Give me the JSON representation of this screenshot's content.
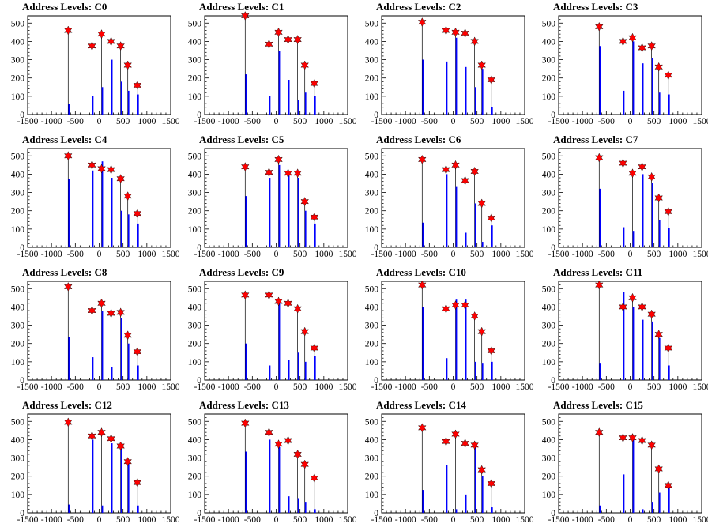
{
  "chart_data": {
    "type": "bar",
    "layout": {
      "rows": 4,
      "cols": 4
    },
    "xlim": [
      -1500,
      1500
    ],
    "ylim": [
      0,
      540
    ],
    "x_ticks": [
      -1500,
      -1000,
      -500,
      0,
      500,
      1000,
      1500
    ],
    "y_ticks": [
      0,
      100,
      200,
      300,
      400,
      500
    ],
    "bar_color": "#0000ff",
    "marker_color": "#ff0000",
    "marker_shape": "star",
    "line_positions": [
      -650,
      -150,
      50,
      250,
      450,
      600,
      800
    ],
    "panels": [
      {
        "title": "Address Levels: C0",
        "peaks": [
          {
            "x": -650,
            "y": 460
          },
          {
            "x": -150,
            "y": 375
          },
          {
            "x": 50,
            "y": 440
          },
          {
            "x": 250,
            "y": 400
          },
          {
            "x": 450,
            "y": 375
          },
          {
            "x": 600,
            "y": 270
          },
          {
            "x": 800,
            "y": 160
          }
        ],
        "bars": [
          {
            "x": -650,
            "y": 60
          },
          {
            "x": -150,
            "y": 100
          },
          {
            "x": 50,
            "y": 150
          },
          {
            "x": 250,
            "y": 300
          },
          {
            "x": 450,
            "y": 180
          },
          {
            "x": 600,
            "y": 130
          },
          {
            "x": 800,
            "y": 110
          }
        ]
      },
      {
        "title": "Address Levels: C1",
        "peaks": [
          {
            "x": -650,
            "y": 540
          },
          {
            "x": -150,
            "y": 385
          },
          {
            "x": 50,
            "y": 450
          },
          {
            "x": 250,
            "y": 410
          },
          {
            "x": 450,
            "y": 410
          },
          {
            "x": 600,
            "y": 270
          },
          {
            "x": 800,
            "y": 170
          }
        ],
        "bars": [
          {
            "x": -650,
            "y": 220
          },
          {
            "x": -150,
            "y": 100
          },
          {
            "x": 50,
            "y": 350
          },
          {
            "x": 250,
            "y": 190
          },
          {
            "x": 450,
            "y": 80
          },
          {
            "x": 600,
            "y": 120
          },
          {
            "x": 800,
            "y": 100
          }
        ]
      },
      {
        "title": "Address Levels: C2",
        "peaks": [
          {
            "x": -650,
            "y": 505
          },
          {
            "x": -150,
            "y": 460
          },
          {
            "x": 50,
            "y": 450
          },
          {
            "x": 250,
            "y": 445
          },
          {
            "x": 450,
            "y": 400
          },
          {
            "x": 600,
            "y": 270
          },
          {
            "x": 800,
            "y": 190
          }
        ],
        "bars": [
          {
            "x": -650,
            "y": 300
          },
          {
            "x": -150,
            "y": 290
          },
          {
            "x": 50,
            "y": 420
          },
          {
            "x": 250,
            "y": 260
          },
          {
            "x": 450,
            "y": 150
          },
          {
            "x": 600,
            "y": 250
          },
          {
            "x": 800,
            "y": 40
          }
        ]
      },
      {
        "title": "Address Levels: C3",
        "peaks": [
          {
            "x": -650,
            "y": 480
          },
          {
            "x": -150,
            "y": 400
          },
          {
            "x": 50,
            "y": 420
          },
          {
            "x": 250,
            "y": 365
          },
          {
            "x": 450,
            "y": 375
          },
          {
            "x": 600,
            "y": 260
          },
          {
            "x": 800,
            "y": 215
          }
        ],
        "bars": [
          {
            "x": -650,
            "y": 375
          },
          {
            "x": -150,
            "y": 130
          },
          {
            "x": 50,
            "y": 400
          },
          {
            "x": 250,
            "y": 280
          },
          {
            "x": 450,
            "y": 310
          },
          {
            "x": 600,
            "y": 120
          },
          {
            "x": 800,
            "y": 110
          }
        ]
      },
      {
        "title": "Address Levels: C4",
        "peaks": [
          {
            "x": -650,
            "y": 500
          },
          {
            "x": -150,
            "y": 450
          },
          {
            "x": 50,
            "y": 430
          },
          {
            "x": 250,
            "y": 425
          },
          {
            "x": 450,
            "y": 375
          },
          {
            "x": 600,
            "y": 280
          },
          {
            "x": 800,
            "y": 185
          }
        ],
        "bars": [
          {
            "x": -650,
            "y": 375
          },
          {
            "x": -150,
            "y": 420
          },
          {
            "x": 50,
            "y": 470
          },
          {
            "x": 250,
            "y": 380
          },
          {
            "x": 450,
            "y": 200
          },
          {
            "x": 600,
            "y": 180
          },
          {
            "x": 800,
            "y": 130
          }
        ]
      },
      {
        "title": "Address Levels: C5",
        "peaks": [
          {
            "x": -650,
            "y": 440
          },
          {
            "x": -150,
            "y": 410
          },
          {
            "x": 50,
            "y": 480
          },
          {
            "x": 250,
            "y": 405
          },
          {
            "x": 450,
            "y": 405
          },
          {
            "x": 600,
            "y": 250
          },
          {
            "x": 800,
            "y": 165
          }
        ],
        "bars": [
          {
            "x": -650,
            "y": 280
          },
          {
            "x": -150,
            "y": 380
          },
          {
            "x": 50,
            "y": 450
          },
          {
            "x": 250,
            "y": 400
          },
          {
            "x": 450,
            "y": 380
          },
          {
            "x": 600,
            "y": 200
          },
          {
            "x": 800,
            "y": 130
          }
        ]
      },
      {
        "title": "Address Levels: C6",
        "peaks": [
          {
            "x": -650,
            "y": 480
          },
          {
            "x": -150,
            "y": 425
          },
          {
            "x": 50,
            "y": 450
          },
          {
            "x": 250,
            "y": 365
          },
          {
            "x": 450,
            "y": 415
          },
          {
            "x": 600,
            "y": 240
          },
          {
            "x": 800,
            "y": 160
          }
        ],
        "bars": [
          {
            "x": -650,
            "y": 135
          },
          {
            "x": -150,
            "y": 400
          },
          {
            "x": 50,
            "y": 330
          },
          {
            "x": 250,
            "y": 80
          },
          {
            "x": 450,
            "y": 240
          },
          {
            "x": 600,
            "y": 30
          },
          {
            "x": 800,
            "y": 120
          }
        ]
      },
      {
        "title": "Address Levels: C7",
        "peaks": [
          {
            "x": -650,
            "y": 490
          },
          {
            "x": -150,
            "y": 460
          },
          {
            "x": 50,
            "y": 405
          },
          {
            "x": 250,
            "y": 440
          },
          {
            "x": 450,
            "y": 385
          },
          {
            "x": 600,
            "y": 270
          },
          {
            "x": 800,
            "y": 195
          }
        ],
        "bars": [
          {
            "x": -650,
            "y": 320
          },
          {
            "x": -150,
            "y": 110
          },
          {
            "x": 50,
            "y": 90
          },
          {
            "x": 250,
            "y": 400
          },
          {
            "x": 450,
            "y": 350
          },
          {
            "x": 600,
            "y": 150
          },
          {
            "x": 800,
            "y": 105
          }
        ]
      },
      {
        "title": "Address Levels: C8",
        "peaks": [
          {
            "x": -650,
            "y": 510
          },
          {
            "x": -150,
            "y": 380
          },
          {
            "x": 50,
            "y": 420
          },
          {
            "x": 250,
            "y": 365
          },
          {
            "x": 450,
            "y": 370
          },
          {
            "x": 600,
            "y": 245
          },
          {
            "x": 800,
            "y": 155
          }
        ],
        "bars": [
          {
            "x": -650,
            "y": 235
          },
          {
            "x": -150,
            "y": 125
          },
          {
            "x": 50,
            "y": 380
          },
          {
            "x": 250,
            "y": 70
          },
          {
            "x": 450,
            "y": 340
          },
          {
            "x": 600,
            "y": 200
          },
          {
            "x": 800,
            "y": 80
          }
        ]
      },
      {
        "title": "Address Levels: C9",
        "peaks": [
          {
            "x": -650,
            "y": 465
          },
          {
            "x": -150,
            "y": 465
          },
          {
            "x": 50,
            "y": 430
          },
          {
            "x": 250,
            "y": 420
          },
          {
            "x": 450,
            "y": 390
          },
          {
            "x": 600,
            "y": 265
          },
          {
            "x": 800,
            "y": 175
          }
        ],
        "bars": [
          {
            "x": -650,
            "y": 200
          },
          {
            "x": -150,
            "y": 80
          },
          {
            "x": 50,
            "y": 420
          },
          {
            "x": 250,
            "y": 110
          },
          {
            "x": 450,
            "y": 150
          },
          {
            "x": 600,
            "y": 100
          },
          {
            "x": 800,
            "y": 130
          }
        ]
      },
      {
        "title": "Address Levels: C10",
        "peaks": [
          {
            "x": -650,
            "y": 520
          },
          {
            "x": -150,
            "y": 390
          },
          {
            "x": 50,
            "y": 410
          },
          {
            "x": 250,
            "y": 410
          },
          {
            "x": 450,
            "y": 350
          },
          {
            "x": 600,
            "y": 265
          },
          {
            "x": 800,
            "y": 160
          }
        ],
        "bars": [
          {
            "x": -650,
            "y": 400
          },
          {
            "x": -150,
            "y": 120
          },
          {
            "x": 50,
            "y": 440
          },
          {
            "x": 250,
            "y": 440
          },
          {
            "x": 450,
            "y": 100
          },
          {
            "x": 600,
            "y": 90
          },
          {
            "x": 800,
            "y": 100
          }
        ]
      },
      {
        "title": "Address Levels: C11",
        "peaks": [
          {
            "x": -650,
            "y": 520
          },
          {
            "x": -150,
            "y": 400
          },
          {
            "x": 50,
            "y": 450
          },
          {
            "x": 250,
            "y": 400
          },
          {
            "x": 450,
            "y": 360
          },
          {
            "x": 600,
            "y": 250
          },
          {
            "x": 800,
            "y": 175
          }
        ],
        "bars": [
          {
            "x": -650,
            "y": 90
          },
          {
            "x": -150,
            "y": 480
          },
          {
            "x": 50,
            "y": 400
          },
          {
            "x": 250,
            "y": 330
          },
          {
            "x": 450,
            "y": 320
          },
          {
            "x": 600,
            "y": 230
          },
          {
            "x": 800,
            "y": 80
          }
        ]
      },
      {
        "title": "Address Levels: C12",
        "peaks": [
          {
            "x": -650,
            "y": 495
          },
          {
            "x": -150,
            "y": 420
          },
          {
            "x": 50,
            "y": 440
          },
          {
            "x": 250,
            "y": 405
          },
          {
            "x": 450,
            "y": 365
          },
          {
            "x": 600,
            "y": 280
          },
          {
            "x": 800,
            "y": 165
          }
        ],
        "bars": [
          {
            "x": -650,
            "y": 45
          },
          {
            "x": -150,
            "y": 400
          },
          {
            "x": 50,
            "y": 40
          },
          {
            "x": 250,
            "y": 380
          },
          {
            "x": 450,
            "y": 350
          },
          {
            "x": 600,
            "y": 270
          },
          {
            "x": 800,
            "y": 40
          }
        ]
      },
      {
        "title": "Address Levels: C13",
        "peaks": [
          {
            "x": -650,
            "y": 490
          },
          {
            "x": -150,
            "y": 440
          },
          {
            "x": 50,
            "y": 375
          },
          {
            "x": 250,
            "y": 395
          },
          {
            "x": 450,
            "y": 320
          },
          {
            "x": 600,
            "y": 265
          },
          {
            "x": 800,
            "y": 190
          }
        ],
        "bars": [
          {
            "x": -650,
            "y": 335
          },
          {
            "x": -150,
            "y": 400
          },
          {
            "x": 50,
            "y": 360
          },
          {
            "x": 250,
            "y": 90
          },
          {
            "x": 450,
            "y": 80
          },
          {
            "x": 600,
            "y": 60
          },
          {
            "x": 800,
            "y": 20
          }
        ]
      },
      {
        "title": "Address Levels: C14",
        "peaks": [
          {
            "x": -650,
            "y": 465
          },
          {
            "x": -150,
            "y": 390
          },
          {
            "x": 50,
            "y": 430
          },
          {
            "x": 250,
            "y": 380
          },
          {
            "x": 450,
            "y": 370
          },
          {
            "x": 600,
            "y": 235
          },
          {
            "x": 800,
            "y": 160
          }
        ],
        "bars": [
          {
            "x": -650,
            "y": 125
          },
          {
            "x": -150,
            "y": 260
          },
          {
            "x": 50,
            "y": 20
          },
          {
            "x": 250,
            "y": 100
          },
          {
            "x": 450,
            "y": 360
          },
          {
            "x": 600,
            "y": 200
          },
          {
            "x": 800,
            "y": 30
          }
        ]
      },
      {
        "title": "Address Levels: C15",
        "peaks": [
          {
            "x": -650,
            "y": 440
          },
          {
            "x": -150,
            "y": 410
          },
          {
            "x": 50,
            "y": 410
          },
          {
            "x": 250,
            "y": 395
          },
          {
            "x": 450,
            "y": 370
          },
          {
            "x": 600,
            "y": 240
          },
          {
            "x": 800,
            "y": 150
          }
        ],
        "bars": [
          {
            "x": -650,
            "y": 40
          },
          {
            "x": -150,
            "y": 210
          },
          {
            "x": 50,
            "y": 410
          },
          {
            "x": 250,
            "y": 20
          },
          {
            "x": 450,
            "y": 60
          },
          {
            "x": 600,
            "y": 110
          },
          {
            "x": 800,
            "y": 140
          }
        ]
      }
    ]
  }
}
